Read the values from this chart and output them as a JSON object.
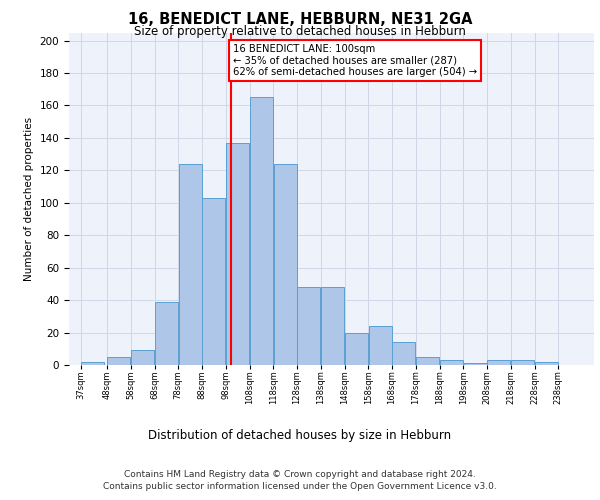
{
  "title": "16, BENEDICT LANE, HEBBURN, NE31 2GA",
  "subtitle": "Size of property relative to detached houses in Hebburn",
  "xlabel": "Distribution of detached houses by size in Hebburn",
  "ylabel": "Number of detached properties",
  "bins": [
    37,
    48,
    58,
    68,
    78,
    88,
    98,
    108,
    118,
    128,
    138,
    148,
    158,
    168,
    178,
    188,
    198,
    208,
    218,
    228,
    238
  ],
  "bar_heights": [
    2,
    5,
    9,
    39,
    124,
    103,
    137,
    165,
    124,
    48,
    48,
    20,
    24,
    14,
    5,
    3,
    1,
    3,
    3,
    2
  ],
  "bar_color": "#aec6e8",
  "bar_edge_color": "#5a9fd4",
  "property_line_x": 100,
  "property_line_color": "red",
  "annotation_text": "16 BENEDICT LANE: 100sqm\n← 35% of detached houses are smaller (287)\n62% of semi-detached houses are larger (504) →",
  "annotation_box_color": "white",
  "annotation_box_edge_color": "red",
  "ylim": [
    0,
    205
  ],
  "yticks": [
    0,
    20,
    40,
    60,
    80,
    100,
    120,
    140,
    160,
    180,
    200
  ],
  "tick_labels": [
    "37sqm",
    "48sqm",
    "58sqm",
    "68sqm",
    "78sqm",
    "88sqm",
    "98sqm",
    "108sqm",
    "118sqm",
    "128sqm",
    "138sqm",
    "148sqm",
    "158sqm",
    "168sqm",
    "178sqm",
    "188sqm",
    "198sqm",
    "208sqm",
    "218sqm",
    "228sqm",
    "238sqm"
  ],
  "grid_color": "#d0d8e8",
  "bg_color": "#eef2fa",
  "footer_line1": "Contains HM Land Registry data © Crown copyright and database right 2024.",
  "footer_line2": "Contains public sector information licensed under the Open Government Licence v3.0."
}
